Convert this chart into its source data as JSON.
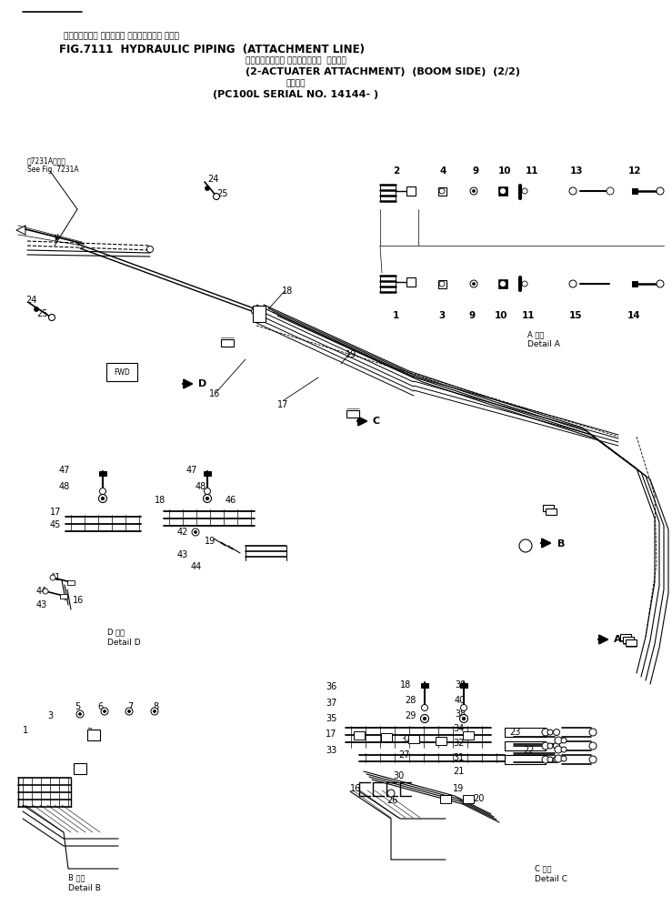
{
  "bg_color": "#ffffff",
  "title_jp1": "ハイドロリック パイピング アタッチメント ライン",
  "title_en1": "FIG.7111  HYDRAULIC PIPING  (ATTACHMENT LINE)",
  "title_jp2": "２アクチュエータ アタッチメント  ブーム側",
  "title_en2": "(2-ACTUATER ATTACHMENT)  (BOOM SIDE)  (2/2)",
  "title_jp3": "適用号機",
  "title_en3": "(PC100L SERIAL NO. 14144- )"
}
